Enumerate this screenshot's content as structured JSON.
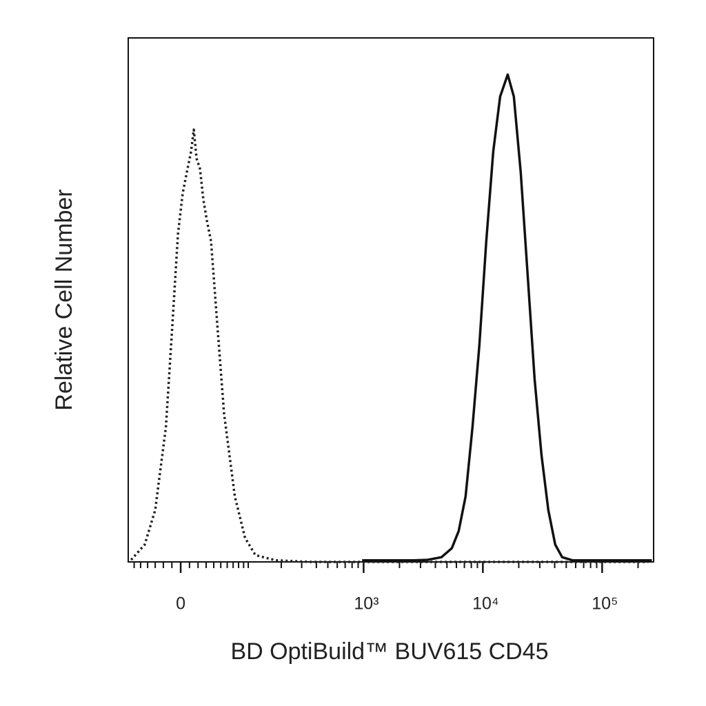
{
  "chart_data": {
    "type": "line",
    "x_label": "BD OptiBuild™ BUV615 CD45",
    "y_label": "Relative Cell Number",
    "xscale": "arcsinh",
    "xlim": [
      -70,
      270000
    ],
    "ylim": [
      0,
      100
    ],
    "xticks": [
      0,
      {
        "value": 1000,
        "label": "10³"
      },
      {
        "value": 10000,
        "label": "10⁴"
      },
      {
        "value": 100000,
        "label": "10⁵"
      }
    ],
    "xminorticks": [
      -60,
      -50,
      -40,
      -30,
      -20,
      -10,
      10,
      20,
      30,
      40,
      50,
      60,
      70,
      80,
      90,
      100,
      200,
      300,
      400,
      500,
      600,
      700,
      800,
      900,
      2000,
      3000,
      4000,
      5000,
      6000,
      7000,
      8000,
      9000,
      20000,
      30000,
      40000,
      50000,
      60000,
      70000,
      80000,
      90000,
      200000
    ],
    "series": [
      {
        "color": "#222222",
        "dash": "dotted",
        "x": [
          -65,
          -44,
          -30,
          -17,
          -9.4,
          -3.1,
          2.3,
          7.8,
          11.8,
          15,
          18.2,
          22.4,
          26.5,
          30.9,
          36.3,
          44.9,
          55,
          73,
          93,
          117,
          179,
          356,
          244000
        ],
        "values": [
          0.4,
          3.3,
          9.9,
          25.7,
          45.4,
          62.5,
          70.4,
          75,
          78.3,
          82.5,
          77,
          75,
          69.1,
          65.1,
          61.2,
          45.4,
          28.3,
          12.5,
          4.6,
          1.3,
          0.3,
          0,
          0
        ]
      },
      {
        "color": "#111111",
        "dash": "solid",
        "x": [
          971,
          2640,
          3446,
          4495,
          5490,
          6270,
          7164,
          8183,
          9347,
          10680,
          12210,
          13950,
          16150,
          18200,
          20790,
          23760,
          27140,
          31000,
          35400,
          40440,
          46230,
          56400,
          260700
        ],
        "values": [
          0.3,
          0.3,
          0.4,
          0.9,
          2.6,
          5.9,
          12.5,
          25.7,
          41.4,
          61.2,
          78.3,
          88.8,
          93,
          88.8,
          74.3,
          54.6,
          34.9,
          20.4,
          9.9,
          3.3,
          0.9,
          0.3,
          0.3
        ]
      }
    ]
  }
}
